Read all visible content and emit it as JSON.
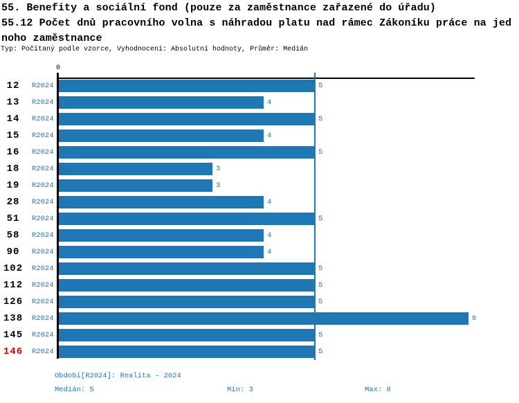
{
  "header": {
    "title_line1": "55. Benefity a sociální fond (pouze za zaměstnance zařazené do úřadu)",
    "title_line2": "55.12 Počet dnů pracovního volna s náhradou platu nad rámec Zákoníku práce na jed",
    "title_line3": "noho zaměstnance",
    "subtitle": "Typ: Počítaný podle vzorce, Vyhodnocení: Absolutní hodnoty, Průměr: Medián"
  },
  "chart_data": {
    "type": "bar",
    "orientation": "horizontal",
    "categories": [
      "12",
      "13",
      "14",
      "15",
      "16",
      "18",
      "19",
      "28",
      "51",
      "58",
      "90",
      "102",
      "112",
      "126",
      "138",
      "145",
      "146"
    ],
    "series_label": "R2024",
    "values": [
      5,
      4,
      5,
      4,
      5,
      3,
      3,
      4,
      5,
      4,
      4,
      5,
      5,
      5,
      8,
      5,
      5
    ],
    "x_axis": {
      "zero_label": "0",
      "min": 0,
      "max": 8
    },
    "median_line_value": 5,
    "highlighted_category": "146",
    "legend_position": "none",
    "grid": false,
    "colors": {
      "bar": "#1f77b4",
      "value_text": "#1f77b4",
      "highlight": "#d40000",
      "axis": "#000000"
    }
  },
  "footer": {
    "period": "Období[R2024]: Realita – 2024",
    "median": "Medián: 5",
    "min": "Min: 3",
    "max": "Max: 8"
  }
}
